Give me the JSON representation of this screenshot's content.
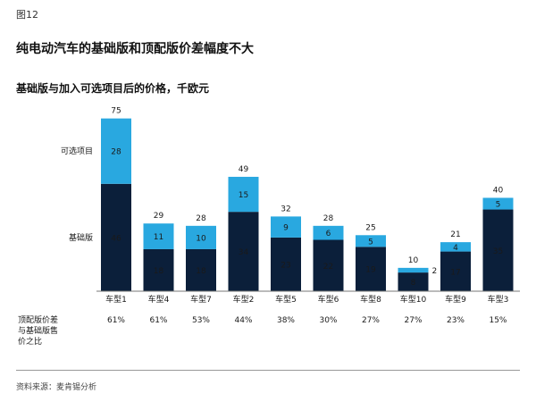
{
  "figure_label": "图12",
  "title": "纯电动汽车的基础版和顶配版价差幅度不大",
  "subtitle": "基础版与加入可选项目后的价格，千欧元",
  "source": "资料来源：麦肯锡分析",
  "colors": {
    "base": "#0b1f3a",
    "option": "#29a8e0"
  },
  "chart_data": {
    "type": "bar",
    "stacked": true,
    "categories": [
      "车型1",
      "车型4",
      "车型7",
      "车型2",
      "车型5",
      "车型6",
      "车型8",
      "车型10",
      "车型9",
      "车型3"
    ],
    "series": [
      {
        "name": "基础版",
        "values": [
          46,
          18,
          18,
          34,
          23,
          22,
          19,
          8,
          17,
          35
        ]
      },
      {
        "name": "可选项目",
        "values": [
          28,
          11,
          10,
          15,
          9,
          6,
          5,
          2,
          4,
          5
        ]
      }
    ],
    "totals": [
      75,
      29,
      28,
      49,
      32,
      28,
      25,
      10,
      21,
      40
    ],
    "legend_placement": "left",
    "row_label": "顶配版价差与基础版售价之比",
    "ratios": [
      "61%",
      "61%",
      "53%",
      "44%",
      "38%",
      "30%",
      "27%",
      "27%",
      "23%",
      "15%"
    ],
    "ylim": [
      0,
      75
    ]
  }
}
